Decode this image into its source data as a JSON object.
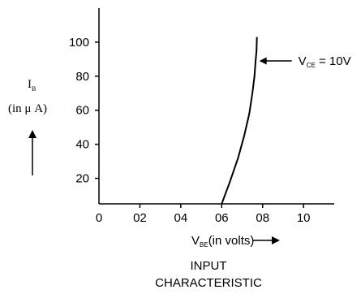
{
  "chart_data": {
    "type": "line",
    "x_ticks": [
      "0",
      "02",
      "04",
      "06",
      "08",
      "10"
    ],
    "x_tick_values": [
      0,
      0.2,
      0.4,
      0.6,
      0.8,
      1.0
    ],
    "y_ticks": [
      "20",
      "40",
      "60",
      "80",
      "100"
    ],
    "y_tick_values": [
      20,
      40,
      60,
      80,
      100
    ],
    "xlim": [
      0,
      1.15
    ],
    "ylim": [
      5,
      120
    ],
    "ylabel_symbol": "I",
    "ylabel_sub": "B",
    "ylabel_units": "(in μ A)",
    "xlabel_symbol": "V",
    "xlabel_sub": "BE",
    "xlabel_units": "(in volts)",
    "caption_line1": "INPUT",
    "caption_line2": "CHARACTERISTIC",
    "series": [
      {
        "x": [
          0.6,
          0.64,
          0.68,
          0.71,
          0.735,
          0.75,
          0.76,
          0.765,
          0.77,
          0.772
        ],
        "y": [
          5,
          18,
          32,
          45,
          58,
          70,
          80,
          88,
          95,
          103
        ]
      }
    ],
    "annotation": {
      "symbol": "V",
      "sub": "CE",
      "text": " = 10V",
      "x": 0.772,
      "y": 89
    },
    "grid": false
  }
}
